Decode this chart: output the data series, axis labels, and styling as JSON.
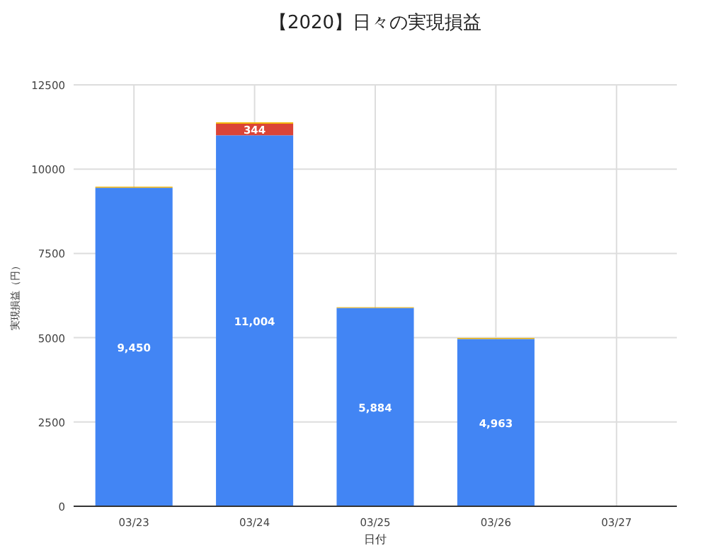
{
  "chart_data": {
    "type": "bar",
    "title": "【2020】日々の実現損益",
    "xlabel": "日付",
    "ylabel": "実現損益（円）",
    "categories": [
      "03/23",
      "03/24",
      "03/25",
      "03/26",
      "03/27"
    ],
    "stacked": true,
    "ylim": [
      0,
      12500
    ],
    "yticks": [
      0,
      2500,
      5000,
      7500,
      10000,
      12500
    ],
    "grid": true,
    "series": [
      {
        "color": "#4285f4",
        "values": [
          9450,
          11004,
          5884,
          4963,
          null
        ],
        "value_labels": [
          "9,450",
          "11,004",
          "5,884",
          "4,963",
          null
        ]
      },
      {
        "color": "#db4437",
        "values": [
          null,
          344,
          null,
          null,
          null
        ],
        "value_labels": [
          null,
          "344",
          null,
          null,
          null
        ]
      },
      {
        "color": "#f4b400",
        "values": [
          30,
          40,
          20,
          30,
          null
        ]
      }
    ]
  }
}
